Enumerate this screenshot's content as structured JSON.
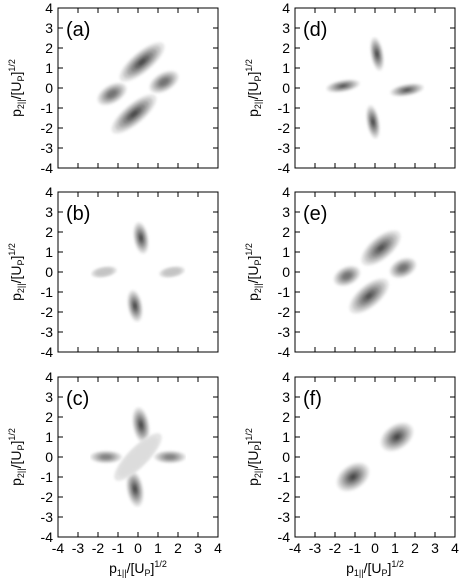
{
  "figure": {
    "axis_ticks": [
      "-4",
      "-3",
      "-2",
      "-1",
      "0",
      "1",
      "2",
      "3",
      "4"
    ],
    "ylabel": {
      "base": "p",
      "sub": "2||",
      "mid": "/[U",
      "mid_sub": "P",
      "end": "]",
      "sup": "1/2"
    },
    "xlabel": {
      "base": "p",
      "sub": "1||",
      "mid": "/[U",
      "mid_sub": "P",
      "end": "]",
      "sup": "1/2"
    }
  },
  "chart_data": [
    {
      "type": "heatmap",
      "panel": "(a)",
      "xlim": [
        -4,
        4
      ],
      "ylim": [
        -4,
        4
      ],
      "grid": false,
      "blobs": [
        {
          "x": 0.2,
          "y": 1.3,
          "len": 2.8,
          "wid": 1.0,
          "angle": -40,
          "intensity": 0.9
        },
        {
          "x": 1.3,
          "y": 0.3,
          "len": 1.6,
          "wid": 0.9,
          "angle": -30,
          "intensity": 0.8
        },
        {
          "x": -1.3,
          "y": -0.3,
          "len": 1.6,
          "wid": 0.9,
          "angle": -30,
          "intensity": 0.8
        },
        {
          "x": -0.2,
          "y": -1.3,
          "len": 2.8,
          "wid": 1.0,
          "angle": -40,
          "intensity": 0.9
        }
      ]
    },
    {
      "type": "heatmap",
      "panel": "(b)",
      "xlim": [
        -4,
        4
      ],
      "ylim": [
        -4,
        4
      ],
      "grid": false,
      "blobs": [
        {
          "x": 0.15,
          "y": 1.7,
          "len": 0.7,
          "wid": 1.6,
          "angle": -10,
          "intensity": 0.9
        },
        {
          "x": -0.15,
          "y": -1.7,
          "len": 0.7,
          "wid": 1.6,
          "angle": -10,
          "intensity": 0.9
        },
        {
          "x": -1.7,
          "y": 0.0,
          "len": 1.3,
          "wid": 0.5,
          "angle": -10,
          "intensity": 0.45
        },
        {
          "x": 1.7,
          "y": 0.0,
          "len": 1.3,
          "wid": 0.5,
          "angle": -10,
          "intensity": 0.45
        }
      ]
    },
    {
      "type": "heatmap",
      "panel": "(c)",
      "xlim": [
        -4,
        4
      ],
      "ylim": [
        -4,
        4
      ],
      "grid": false,
      "blobs": [
        {
          "x": 0.15,
          "y": 1.6,
          "len": 0.8,
          "wid": 1.8,
          "angle": -10,
          "intensity": 0.9
        },
        {
          "x": -0.15,
          "y": -1.6,
          "len": 0.8,
          "wid": 1.8,
          "angle": -10,
          "intensity": 0.9
        },
        {
          "x": -1.6,
          "y": 0.0,
          "len": 1.6,
          "wid": 0.6,
          "angle": 0,
          "intensity": 0.7
        },
        {
          "x": 1.6,
          "y": 0.0,
          "len": 1.6,
          "wid": 0.6,
          "angle": 0,
          "intensity": 0.7
        },
        {
          "x": 0.0,
          "y": 0.0,
          "len": 3.2,
          "wid": 1.0,
          "angle": -45,
          "intensity": 0.18
        }
      ]
    },
    {
      "type": "heatmap",
      "panel": "(d)",
      "xlim": [
        -4,
        4
      ],
      "ylim": [
        -4,
        4
      ],
      "grid": false,
      "blobs": [
        {
          "x": 0.1,
          "y": 1.7,
          "len": 0.6,
          "wid": 1.7,
          "angle": -10,
          "intensity": 0.9
        },
        {
          "x": -0.1,
          "y": -1.7,
          "len": 0.6,
          "wid": 1.7,
          "angle": -10,
          "intensity": 0.9
        },
        {
          "x": -1.6,
          "y": 0.1,
          "len": 1.7,
          "wid": 0.55,
          "angle": -10,
          "intensity": 0.85
        },
        {
          "x": 1.6,
          "y": -0.1,
          "len": 1.7,
          "wid": 0.55,
          "angle": -10,
          "intensity": 0.85
        }
      ]
    },
    {
      "type": "heatmap",
      "panel": "(e)",
      "xlim": [
        -4,
        4
      ],
      "ylim": [
        -4,
        4
      ],
      "grid": false,
      "blobs": [
        {
          "x": 0.3,
          "y": 1.2,
          "len": 2.4,
          "wid": 1.1,
          "angle": -40,
          "intensity": 0.85
        },
        {
          "x": 1.4,
          "y": 0.2,
          "len": 1.4,
          "wid": 0.9,
          "angle": -25,
          "intensity": 0.8
        },
        {
          "x": -1.4,
          "y": -0.2,
          "len": 1.4,
          "wid": 0.9,
          "angle": -25,
          "intensity": 0.8
        },
        {
          "x": -0.3,
          "y": -1.2,
          "len": 2.4,
          "wid": 1.1,
          "angle": -40,
          "intensity": 0.85
        }
      ]
    },
    {
      "type": "heatmap",
      "panel": "(f)",
      "xlim": [
        -4,
        4
      ],
      "ylim": [
        -4,
        4
      ],
      "grid": false,
      "blobs": [
        {
          "x": 1.1,
          "y": 1.0,
          "len": 1.8,
          "wid": 1.2,
          "angle": -35,
          "intensity": 0.9
        },
        {
          "x": -1.1,
          "y": -1.0,
          "len": 1.8,
          "wid": 1.2,
          "angle": -35,
          "intensity": 0.9
        }
      ]
    }
  ]
}
